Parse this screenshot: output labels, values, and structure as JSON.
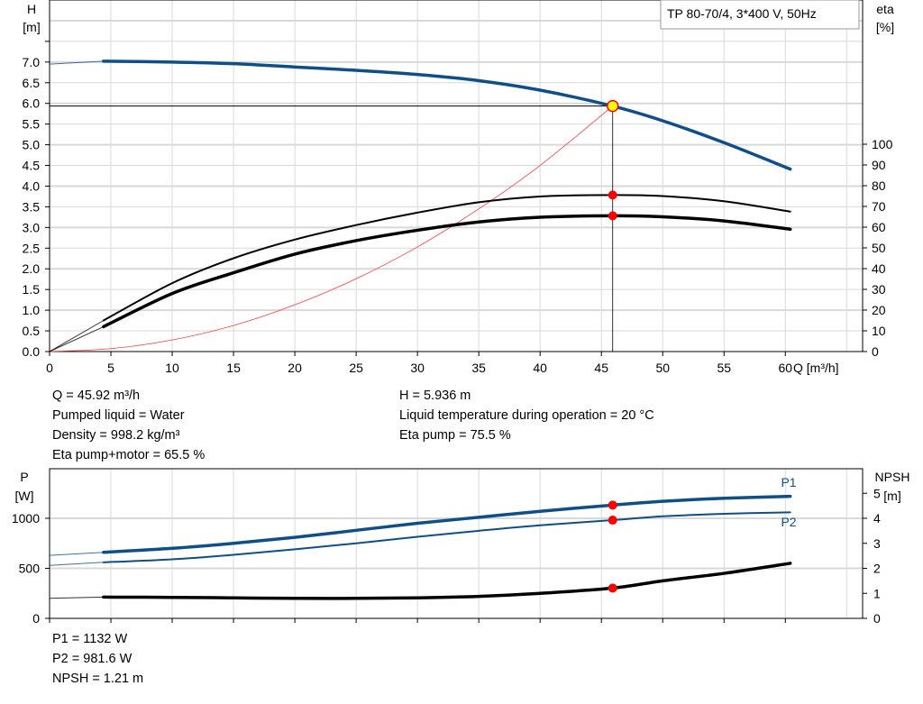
{
  "chart_data": [
    {
      "type": "line",
      "title": "TP 80-70/4, 3*400 V, 50Hz",
      "xlabel": "Q [m³/h]",
      "ylabel_left": "H",
      "ylabel_left_unit": "[m]",
      "ylabel_right": "eta",
      "ylabel_right_unit": "[%]",
      "xlim": [
        0,
        66.3
      ],
      "ylim_left": [
        0,
        8.5
      ],
      "ylim_right": [
        0,
        100
      ],
      "x_ticks": [
        0,
        5,
        10,
        15,
        20,
        25,
        30,
        35,
        40,
        45,
        50,
        55,
        60
      ],
      "y_left_ticks": [
        "0.0",
        "0.5",
        "1.0",
        "1.5",
        "2.0",
        "2.5",
        "3.0",
        "3.5",
        "4.0",
        "4.5",
        "5.0",
        "5.5",
        "6.0",
        "6.5",
        "7.0"
      ],
      "y_right_ticks": [
        0,
        10,
        20,
        30,
        40,
        50,
        60,
        70,
        80,
        90,
        100
      ],
      "grid": true,
      "series": [
        {
          "axis": "left",
          "color": "#0e4f8a",
          "x": [
            0,
            4.4,
            10,
            15,
            20,
            25,
            30,
            35,
            40,
            45.92,
            50,
            55,
            60.4
          ],
          "y": [
            6.95,
            7.02,
            7.0,
            6.96,
            6.88,
            6.8,
            6.7,
            6.55,
            6.32,
            5.936,
            5.58,
            5.05,
            4.41
          ]
        },
        {
          "axis": "right",
          "color": "#000000",
          "x": [
            0,
            4.4,
            10,
            15,
            20,
            25,
            30,
            35,
            40,
            45.92,
            50,
            55,
            60.4
          ],
          "y": [
            0,
            15,
            33,
            45,
            54,
            61,
            67,
            72,
            74.8,
            75.5,
            75,
            72.5,
            67.5
          ]
        },
        {
          "axis": "right",
          "color": "#000000",
          "x": [
            0,
            4.4,
            10,
            15,
            20,
            25,
            30,
            35,
            40,
            45.92,
            50,
            55,
            60.4
          ],
          "y": [
            0,
            12,
            28,
            38,
            47,
            53.5,
            58.5,
            62.5,
            64.8,
            65.5,
            65,
            63,
            59
          ]
        },
        {
          "axis": "left",
          "color": "#ff3b3b",
          "x": [
            0,
            5,
            10,
            15,
            20,
            25,
            30,
            35,
            40,
            45.92
          ],
          "y": [
            0,
            0.07,
            0.28,
            0.63,
            1.13,
            1.76,
            2.53,
            3.45,
            4.5,
            5.936
          ]
        }
      ],
      "operating_point": {
        "Q": 45.92,
        "H": 5.936,
        "eta_pump": 75.5,
        "eta_pump_motor": 65.5
      }
    },
    {
      "type": "line",
      "ylabel_left": "P",
      "ylabel_left_unit": "[W]",
      "ylabel_right": "NPSH",
      "ylabel_right_unit": "[m]",
      "xlim": [
        0,
        66.3
      ],
      "ylim_left": [
        0,
        1500
      ],
      "ylim_right": [
        0,
        6
      ],
      "y_left_ticks": [
        0,
        500,
        1000
      ],
      "y_right_ticks": [
        0,
        1,
        2,
        3,
        4,
        5
      ],
      "grid": true,
      "series": [
        {
          "name": "P1",
          "axis": "left",
          "color": "#0e4f8a",
          "x": [
            0,
            4.4,
            10,
            15,
            20,
            25,
            30,
            35,
            40,
            45.92,
            50,
            55,
            60.4
          ],
          "y": [
            630,
            660,
            700,
            750,
            810,
            880,
            950,
            1010,
            1070,
            1132,
            1170,
            1200,
            1220
          ]
        },
        {
          "name": "P2",
          "axis": "left",
          "color": "#0e4f8a",
          "x": [
            0,
            4.4,
            10,
            15,
            20,
            25,
            30,
            35,
            40,
            45.92,
            50,
            55,
            60.4
          ],
          "y": [
            530,
            560,
            590,
            635,
            690,
            750,
            815,
            875,
            930,
            981.6,
            1020,
            1045,
            1060
          ]
        },
        {
          "axis": "right",
          "color": "#000000",
          "x": [
            0,
            4.4,
            10,
            15,
            20,
            25,
            30,
            35,
            40,
            45.92,
            50,
            55,
            60.4
          ],
          "y": [
            0.8,
            0.85,
            0.84,
            0.82,
            0.8,
            0.8,
            0.82,
            0.88,
            1.0,
            1.21,
            1.5,
            1.8,
            2.2
          ]
        }
      ],
      "operating_point": {
        "P1": 1132,
        "P2": 981.6,
        "NPSH": 1.21
      }
    }
  ],
  "info_top": {
    "left": [
      "Q = 45.92 m³/h",
      "Pumped liquid = Water",
      "Density = 998.2 kg/m³",
      "Eta pump+motor = 65.5 %"
    ],
    "right": [
      "H = 5.936 m",
      "Liquid temperature during operation = 20 °C",
      "Eta pump = 75.5 %"
    ]
  },
  "info_bottom": [
    "P1 = 1132 W",
    "P2 = 981.6 W",
    "NPSH = 1.21 m"
  ]
}
